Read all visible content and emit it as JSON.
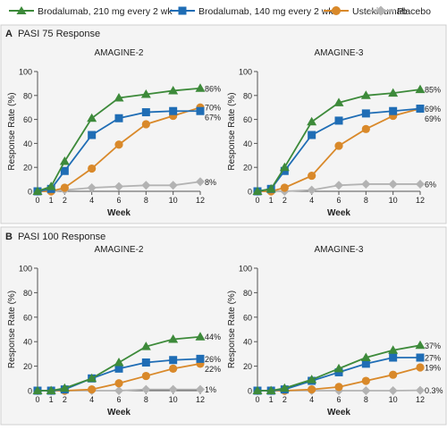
{
  "legend": {
    "items": [
      {
        "label": "Brodalumab, 210 mg every 2 wk",
        "color": "#3d8a3a",
        "marker": "triangle"
      },
      {
        "label": "Brodalumab, 140 mg every 2 wk",
        "color": "#1f6db5",
        "marker": "square"
      },
      {
        "label": "Ustekinumab",
        "color": "#d9892a",
        "marker": "circle"
      },
      {
        "label": "Placebo",
        "color": "#b3b3b3",
        "marker": "diamond"
      }
    ]
  },
  "sections": [
    {
      "letter": "A",
      "title": "PASI 75 Response"
    },
    {
      "letter": "B",
      "title": "PASI 100 Response"
    }
  ],
  "chart_data": [
    {
      "type": "line",
      "title": "AMAGINE-2",
      "xlabel": "Week",
      "ylabel": "Response Rate (%)",
      "xlim": [
        0,
        12
      ],
      "ylim": [
        0,
        100
      ],
      "xticks": [
        0,
        1,
        2,
        4,
        6,
        8,
        10,
        12
      ],
      "yticks": [
        0,
        20,
        40,
        60,
        80,
        100
      ],
      "series": [
        {
          "name": "Brodalumab, 210 mg every 2 wk",
          "color": "#3d8a3a",
          "marker": "triangle",
          "x": [
            0,
            1,
            2,
            4,
            6,
            8,
            10,
            12
          ],
          "y": [
            0,
            4,
            25,
            61,
            78,
            81,
            84,
            86
          ],
          "end_label": "86%"
        },
        {
          "name": "Brodalumab, 140 mg every 2 wk",
          "color": "#1f6db5",
          "marker": "square",
          "x": [
            0,
            1,
            2,
            4,
            6,
            8,
            10,
            12
          ],
          "y": [
            0,
            2,
            17,
            47,
            61,
            66,
            67,
            67
          ],
          "end_label": "67%"
        },
        {
          "name": "Ustekinumab",
          "color": "#d9892a",
          "marker": "circle",
          "x": [
            0,
            1,
            2,
            4,
            6,
            8,
            10,
            12
          ],
          "y": [
            0,
            0,
            3,
            19,
            39,
            56,
            63,
            70
          ],
          "end_label": "70%"
        },
        {
          "name": "Placebo",
          "color": "#b3b3b3",
          "marker": "diamond",
          "x": [
            0,
            1,
            2,
            4,
            6,
            8,
            10,
            12
          ],
          "y": [
            0,
            0,
            1,
            3,
            4,
            5,
            5,
            8
          ],
          "end_label": "8%"
        }
      ]
    },
    {
      "type": "line",
      "title": "AMAGINE-3",
      "xlabel": "Week",
      "ylabel": "Response Rate (%)",
      "xlim": [
        0,
        12
      ],
      "ylim": [
        0,
        100
      ],
      "xticks": [
        0,
        1,
        2,
        4,
        6,
        8,
        10,
        12
      ],
      "yticks": [
        0,
        20,
        40,
        60,
        80,
        100
      ],
      "series": [
        {
          "name": "Brodalumab, 210 mg every 2 wk",
          "color": "#3d8a3a",
          "marker": "triangle",
          "x": [
            0,
            1,
            2,
            4,
            6,
            8,
            10,
            12
          ],
          "y": [
            0,
            2,
            20,
            58,
            74,
            80,
            82,
            85
          ],
          "end_label": "85%"
        },
        {
          "name": "Brodalumab, 140 mg every 2 wk",
          "color": "#1f6db5",
          "marker": "square",
          "x": [
            0,
            1,
            2,
            4,
            6,
            8,
            10,
            12
          ],
          "y": [
            0,
            2,
            17,
            47,
            59,
            65,
            67,
            69
          ],
          "end_label": "69%"
        },
        {
          "name": "Ustekinumab",
          "color": "#d9892a",
          "marker": "circle",
          "x": [
            0,
            1,
            2,
            4,
            6,
            8,
            10,
            12
          ],
          "y": [
            0,
            0,
            3,
            13,
            38,
            52,
            63,
            69
          ],
          "end_label": "69%"
        },
        {
          "name": "Placebo",
          "color": "#b3b3b3",
          "marker": "diamond",
          "x": [
            0,
            1,
            2,
            4,
            6,
            8,
            10,
            12
          ],
          "y": [
            0,
            0,
            0,
            1,
            5,
            6,
            6,
            6
          ],
          "end_label": "6%"
        }
      ]
    },
    {
      "type": "line",
      "title": "AMAGINE-2",
      "xlabel": "Week",
      "ylabel": "Response Rate (%)",
      "xlim": [
        0,
        12
      ],
      "ylim": [
        0,
        100
      ],
      "xticks": [
        0,
        1,
        2,
        4,
        6,
        8,
        10,
        12
      ],
      "yticks": [
        0,
        20,
        40,
        60,
        80,
        100
      ],
      "series": [
        {
          "name": "Brodalumab, 210 mg every 2 wk",
          "color": "#3d8a3a",
          "marker": "triangle",
          "x": [
            0,
            1,
            2,
            4,
            6,
            8,
            10,
            12
          ],
          "y": [
            0,
            0,
            2,
            10,
            23,
            36,
            42,
            44
          ],
          "end_label": "44%"
        },
        {
          "name": "Brodalumab, 140 mg every 2 wk",
          "color": "#1f6db5",
          "marker": "square",
          "x": [
            0,
            1,
            2,
            4,
            6,
            8,
            10,
            12
          ],
          "y": [
            0,
            0,
            1,
            10,
            18,
            23,
            25,
            26
          ],
          "end_label": "26%"
        },
        {
          "name": "Ustekinumab",
          "color": "#d9892a",
          "marker": "circle",
          "x": [
            0,
            1,
            2,
            4,
            6,
            8,
            10,
            12
          ],
          "y": [
            0,
            0,
            0,
            1,
            6,
            12,
            18,
            22
          ],
          "end_label": "22%"
        },
        {
          "name": "Placebo",
          "color": "#b3b3b3",
          "marker": "diamond",
          "x": [
            0,
            1,
            2,
            4,
            6,
            8,
            10,
            12
          ],
          "y": [
            0,
            0,
            0,
            0,
            0,
            1,
            1,
            1
          ],
          "end_label": "1%"
        }
      ]
    },
    {
      "type": "line",
      "title": "AMAGINE-3",
      "xlabel": "Week",
      "ylabel": "Response Rate (%)",
      "xlim": [
        0,
        12
      ],
      "ylim": [
        0,
        100
      ],
      "xticks": [
        0,
        1,
        2,
        4,
        6,
        8,
        10,
        12
      ],
      "yticks": [
        0,
        20,
        40,
        60,
        80,
        100
      ],
      "series": [
        {
          "name": "Brodalumab, 210 mg every 2 wk",
          "color": "#3d8a3a",
          "marker": "triangle",
          "x": [
            0,
            1,
            2,
            4,
            6,
            8,
            10,
            12
          ],
          "y": [
            0,
            0,
            2,
            9,
            18,
            27,
            33,
            37
          ],
          "end_label": "37%"
        },
        {
          "name": "Brodalumab, 140 mg every 2 wk",
          "color": "#1f6db5",
          "marker": "square",
          "x": [
            0,
            1,
            2,
            4,
            6,
            8,
            10,
            12
          ],
          "y": [
            0,
            0,
            1,
            8,
            15,
            22,
            27,
            27
          ],
          "end_label": "27%"
        },
        {
          "name": "Ustekinumab",
          "color": "#d9892a",
          "marker": "circle",
          "x": [
            0,
            1,
            2,
            4,
            6,
            8,
            10,
            12
          ],
          "y": [
            0,
            0,
            0,
            1,
            3,
            8,
            13,
            19
          ],
          "end_label": "19%"
        },
        {
          "name": "Placebo",
          "color": "#b3b3b3",
          "marker": "diamond",
          "x": [
            0,
            1,
            2,
            4,
            6,
            8,
            10,
            12
          ],
          "y": [
            0,
            0,
            0,
            0,
            0,
            0,
            0,
            0.3
          ],
          "end_label": "0.3%"
        }
      ]
    }
  ]
}
